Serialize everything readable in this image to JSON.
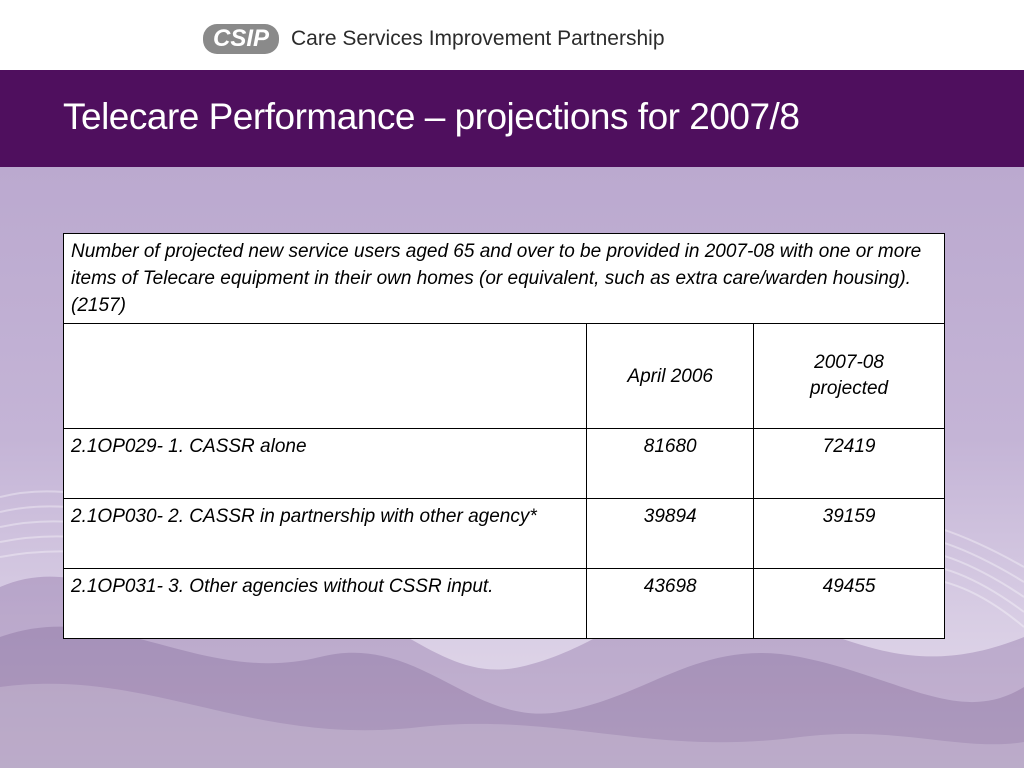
{
  "header": {
    "logo_badge": "CSIP",
    "logo_text": "Care Services Improvement Partnership"
  },
  "slide": {
    "title": "Telecare Performance – projections for 2007/8"
  },
  "table": {
    "caption": "Number of projected new service users aged 65 and over to be provided in 2007-08 with one or more items of Telecare equipment in their own homes (or equivalent, such as extra care/warden housing). (2157)",
    "columns": [
      "",
      "April 2006",
      "2007-08 projected"
    ],
    "rows": [
      {
        "label": "2.1OP029- 1. CASSR alone",
        "april_2006": "81680",
        "projected_2007_08": "72419"
      },
      {
        "label": "2.1OP030- 2. CASSR in partnership with other agency*",
        "april_2006": "39894",
        "projected_2007_08": "39159"
      },
      {
        "label": "2.1OP031- 3. Other agencies without CSSR input.",
        "april_2006": "43698",
        "projected_2007_08": "49455"
      }
    ]
  },
  "colors": {
    "title_bar": "#4f0f5e",
    "background": "#c4b4d6",
    "logo_badge": "#8a8a8a"
  }
}
